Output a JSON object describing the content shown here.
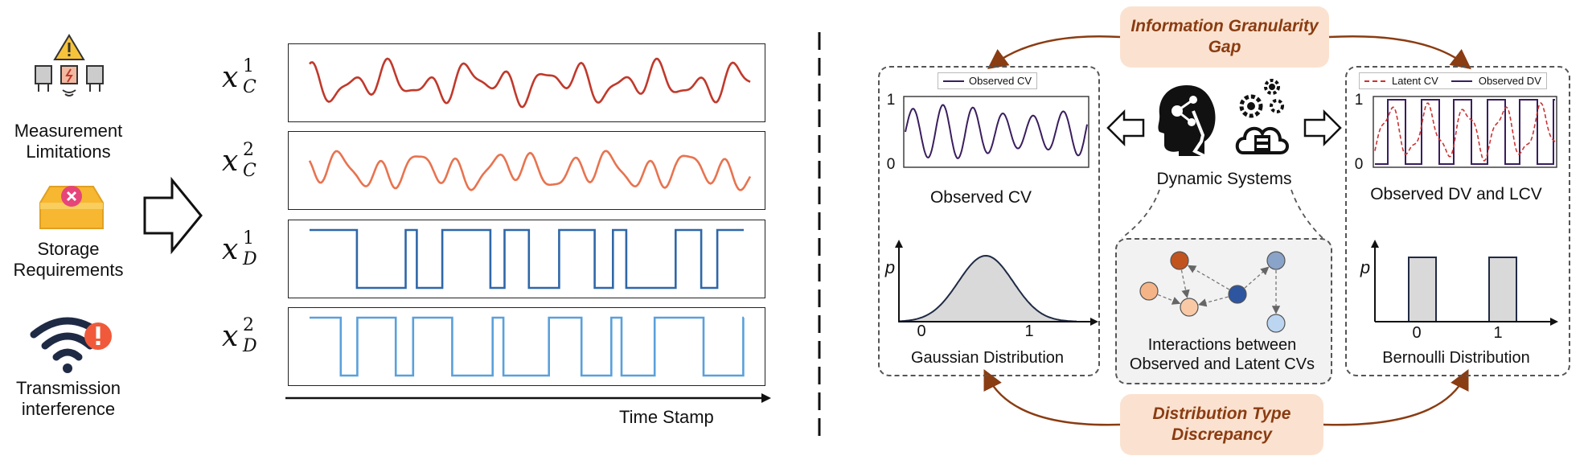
{
  "left_panel": {
    "challenges": [
      {
        "label_line1": "Measurement",
        "label_line2": "Limitations",
        "icon": "sensor-warning-icon"
      },
      {
        "label_line1": "Storage",
        "label_line2": "Requirements",
        "icon": "storage-box-icon"
      },
      {
        "label_line1": "Transmission",
        "label_line2": "interference",
        "icon": "wifi-alert-icon"
      }
    ],
    "series": [
      {
        "symbol": "x",
        "sup": "1",
        "sub": "C",
        "kind": "continuous",
        "color": "#c0392b"
      },
      {
        "symbol": "x",
        "sup": "2",
        "sub": "C",
        "kind": "continuous",
        "color": "#e8734f"
      },
      {
        "symbol": "x",
        "sup": "1",
        "sub": "D",
        "kind": "discrete",
        "color": "#2f67a8"
      },
      {
        "symbol": "x",
        "sup": "2",
        "sub": "D",
        "kind": "discrete",
        "color": "#5aa0db"
      }
    ],
    "time_axis_label": "Time Stamp"
  },
  "right_panel": {
    "top_pill": {
      "line1": "Information Granularity",
      "line2": "Gap"
    },
    "bottom_pill": {
      "line1": "Distribution Type",
      "line2": "Discrepancy"
    },
    "center_label": "Dynamic Systems",
    "interaction_label_line1": "Interactions between",
    "interaction_label_line2": "Observed and Latent CVs",
    "left_card": {
      "legend": "Observed CV",
      "plot_title": "Observed CV",
      "y_ticks": [
        "1",
        "0"
      ],
      "dist_axis_label": "p",
      "dist_ticks": [
        "0",
        "1"
      ],
      "dist_title": "Gaussian Distribution"
    },
    "right_card": {
      "legend_latent": "Latent CV",
      "legend_observed": "Observed DV",
      "y_ticks": [
        "1",
        "0"
      ],
      "plot_title": "Observed DV and LCV",
      "dist_axis_label": "p",
      "dist_ticks": [
        "0",
        "1"
      ],
      "dist_title": "Bernoulli Distribution"
    }
  },
  "colors": {
    "accent_brown": "#8a3c12",
    "pill_bg": "#fbe2d0",
    "observed_cv": "#3a1e5e",
    "latent_cv": "#cc3333"
  }
}
